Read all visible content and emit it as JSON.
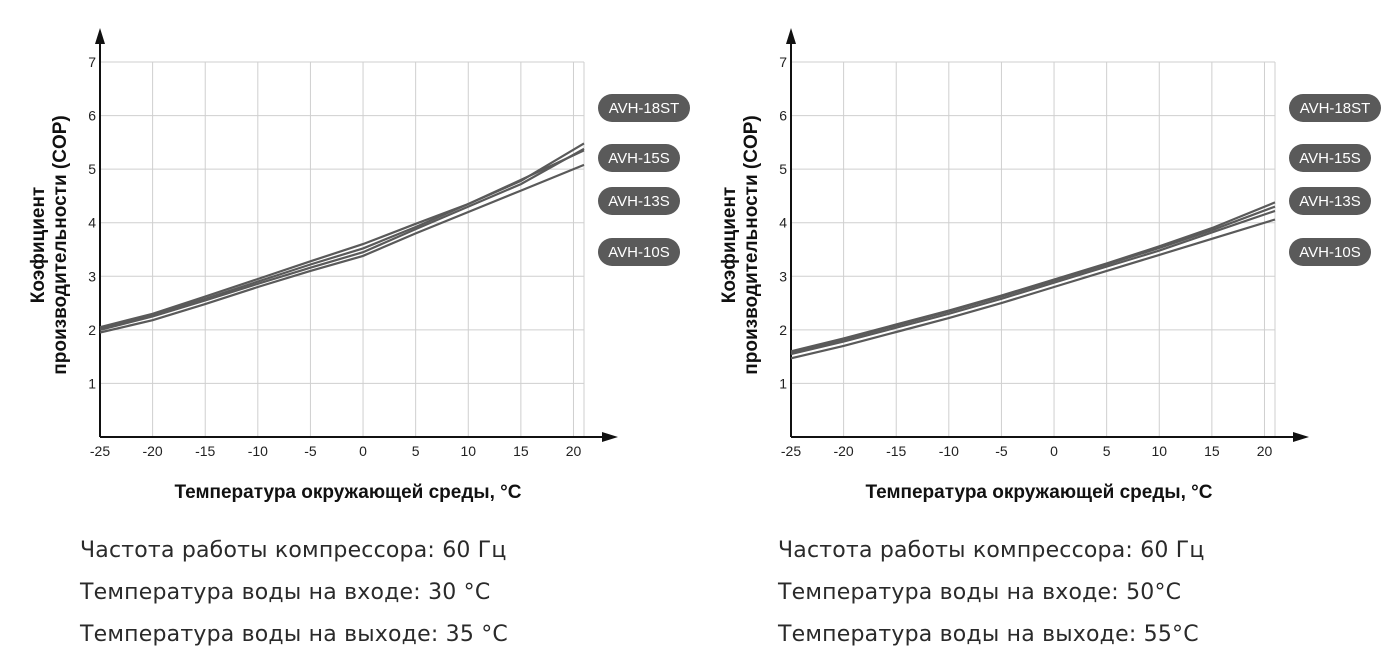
{
  "chart_data": [
    {
      "type": "line",
      "title": "",
      "xlabel": "Температура окружающей среды, °C",
      "ylabel_lines": [
        "Коэфициент",
        "производительности (COP)"
      ],
      "xlim": [
        -25,
        21
      ],
      "ylim": [
        0,
        7
      ],
      "x_ticks": [
        -25,
        -20,
        -15,
        -10,
        -5,
        0,
        5,
        10,
        15,
        20
      ],
      "y_ticks": [
        1,
        2,
        3,
        4,
        5,
        6,
        7
      ],
      "grid": true,
      "legend_position": "right",
      "series": [
        {
          "name": "AVH-18ST",
          "x": [
            -25,
            -20,
            -15,
            -10,
            -5,
            0,
            5,
            10,
            15,
            21
          ],
          "y": [
            2.05,
            2.3,
            2.62,
            2.95,
            3.28,
            3.6,
            3.98,
            4.35,
            4.78,
            5.48
          ]
        },
        {
          "name": "AVH-15S",
          "x": [
            -25,
            -20,
            -15,
            -10,
            -5,
            0,
            5,
            10,
            15,
            21
          ],
          "y": [
            2.02,
            2.28,
            2.58,
            2.9,
            3.22,
            3.52,
            3.92,
            4.35,
            4.8,
            5.35
          ]
        },
        {
          "name": "AVH-13S",
          "x": [
            -25,
            -20,
            -15,
            -10,
            -5,
            0,
            5,
            10,
            15,
            21
          ],
          "y": [
            2.0,
            2.25,
            2.55,
            2.86,
            3.16,
            3.45,
            3.88,
            4.3,
            4.72,
            5.38
          ]
        },
        {
          "name": "AVH-10S",
          "x": [
            -25,
            -20,
            -15,
            -10,
            -5,
            0,
            5,
            10,
            15,
            21
          ],
          "y": [
            1.95,
            2.18,
            2.48,
            2.8,
            3.1,
            3.38,
            3.8,
            4.2,
            4.6,
            5.08
          ]
        }
      ]
    },
    {
      "type": "line",
      "title": "",
      "xlabel": "Температура окружающей среды, °C",
      "ylabel_lines": [
        "Коэфициент",
        "производительности (COP)"
      ],
      "xlim": [
        -25,
        21
      ],
      "ylim": [
        0,
        7
      ],
      "x_ticks": [
        -25,
        -20,
        -15,
        -10,
        -5,
        0,
        5,
        10,
        15,
        20
      ],
      "y_ticks": [
        1,
        2,
        3,
        4,
        5,
        6,
        7
      ],
      "grid": true,
      "legend_position": "right",
      "series": [
        {
          "name": "AVH-18ST",
          "x": [
            -25,
            -20,
            -15,
            -10,
            -5,
            0,
            5,
            10,
            15,
            21
          ],
          "y": [
            1.6,
            1.84,
            2.1,
            2.36,
            2.64,
            2.94,
            3.24,
            3.56,
            3.9,
            4.38
          ]
        },
        {
          "name": "AVH-15S",
          "x": [
            -25,
            -20,
            -15,
            -10,
            -5,
            0,
            5,
            10,
            15,
            21
          ],
          "y": [
            1.58,
            1.82,
            2.08,
            2.34,
            2.62,
            2.92,
            3.22,
            3.53,
            3.86,
            4.3
          ]
        },
        {
          "name": "AVH-13S",
          "x": [
            -25,
            -20,
            -15,
            -10,
            -5,
            0,
            5,
            10,
            15,
            21
          ],
          "y": [
            1.55,
            1.78,
            2.04,
            2.3,
            2.58,
            2.88,
            3.18,
            3.48,
            3.82,
            4.22
          ]
        },
        {
          "name": "AVH-10S",
          "x": [
            -25,
            -20,
            -15,
            -10,
            -5,
            0,
            5,
            10,
            15,
            21
          ],
          "y": [
            1.47,
            1.7,
            1.96,
            2.22,
            2.5,
            2.8,
            3.1,
            3.4,
            3.7,
            4.06
          ]
        }
      ]
    }
  ],
  "legend_labels": [
    "AVH-18ST",
    "AVH-15S",
    "AVH-13S",
    "AVH-10S"
  ],
  "notes_left": [
    "Частота работы компрессора: 60 Гц",
    "Температура воды на входе: 30 °C",
    "Температура воды на выходе: 35 °C"
  ],
  "notes_right": [
    "Частота работы компрессора: 60 Гц",
    "Температура воды на входе: 50°C",
    "Температура воды на выходе: 55°C"
  ],
  "colors": {
    "line": "#5a5a5a",
    "legend_fill": "#5a5a5a",
    "grid": "#cfcfcf",
    "axis": "#111111"
  }
}
